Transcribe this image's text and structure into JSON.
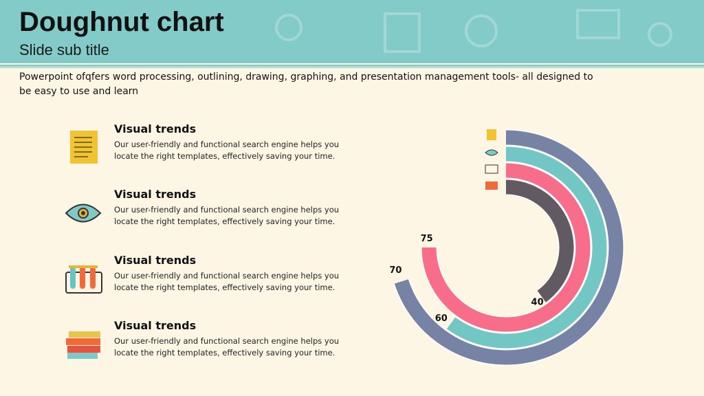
{
  "header": {
    "title": "Doughnut chart",
    "subtitle": "Slide sub title"
  },
  "intro": "Powerpoint ofqfers word processing, outlining, drawing, graphing, and presentation management tools- all designed to be easy to use and learn",
  "items": [
    {
      "title": "Visual trends",
      "text": "Our user-friendly and functional search engine helps you locate the right templates, effectively saving your time."
    },
    {
      "title": "Visual trends",
      "text": "Our user-friendly and functional search engine helps you locate the right templates, effectively saving your time."
    },
    {
      "title": "Visual trends",
      "text": "Our user-friendly and functional search engine helps you locate the right templates, effectively saving your time."
    },
    {
      "title": "Visual trends",
      "text": "Our user-friendly and functional search engine helps you locate the right templates, effectively saving your time."
    }
  ],
  "chart_data": {
    "type": "radial-bar",
    "values": [
      70,
      60,
      75,
      40
    ],
    "colors": [
      "#7783a5",
      "#72c6c4",
      "#f76d8a",
      "#625a63"
    ],
    "ylim": [
      0,
      100
    ]
  }
}
